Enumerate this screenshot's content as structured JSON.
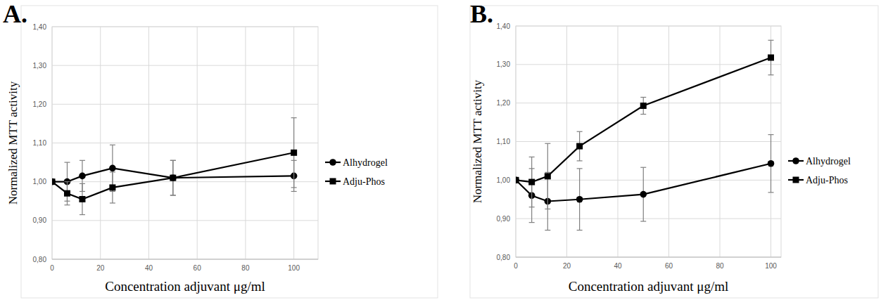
{
  "chart_data": [
    {
      "type": "line",
      "title": "A.",
      "x_label": "Concentration adjuvant μg/ml",
      "y_label": "Normalized MTT activity",
      "x": [
        0,
        6.25,
        12.5,
        25,
        50,
        100
      ],
      "series": [
        {
          "name": "Alhydrogel",
          "color": "#000000",
          "marker": "circle",
          "line_style": "solid",
          "values": [
            1.0,
            1.0,
            1.015,
            1.035,
            1.01,
            1.015
          ],
          "errors": [
            0,
            0.05,
            0.04,
            0.06,
            0.045,
            0.04
          ]
        },
        {
          "name": "Adju-Phos",
          "color": "#000000",
          "marker": "square",
          "line_style": "solid",
          "values": [
            1.0,
            0.97,
            0.955,
            0.985,
            1.01,
            1.075
          ],
          "errors": [
            0,
            0.03,
            0.04,
            0.04,
            0.045,
            0.09
          ]
        }
      ],
      "xlim": [
        0,
        110
      ],
      "xticks": [
        0,
        20,
        40,
        60,
        80,
        100
      ],
      "ylim": [
        0.8,
        1.4
      ],
      "yticks": [
        {
          "value": 0.8,
          "label": "0,80"
        },
        {
          "value": 0.9,
          "label": "0,90"
        },
        {
          "value": 1.0,
          "label": "1,00"
        },
        {
          "value": 1.1,
          "label": "1,10"
        },
        {
          "value": 1.2,
          "label": "1,20"
        },
        {
          "value": 1.3,
          "label": "1,30"
        },
        {
          "value": 1.4,
          "label": "1,40"
        }
      ],
      "grid": true,
      "legend": "right"
    },
    {
      "type": "line",
      "title": "B.",
      "x_label": "Concentration adjuvant μg/ml",
      "y_label": "Normalized MTT activity",
      "x": [
        0,
        6.25,
        12.5,
        25,
        50,
        100
      ],
      "series": [
        {
          "name": "Alhydrogel",
          "color": "#000000",
          "marker": "circle",
          "line_style": "solid",
          "values": [
            1.0,
            0.96,
            0.945,
            0.95,
            0.963,
            1.043
          ],
          "errors": [
            0,
            0.07,
            0.075,
            0.08,
            0.07,
            0.075
          ]
        },
        {
          "name": "Adju-Phos",
          "color": "#000000",
          "marker": "square",
          "line_style": "solid",
          "values": [
            1.0,
            0.995,
            1.01,
            1.088,
            1.193,
            1.318
          ],
          "errors": [
            0,
            0.065,
            0.085,
            0.038,
            0.022,
            0.045
          ]
        }
      ],
      "xlim": [
        0,
        104
      ],
      "xticks": [
        0,
        20,
        40,
        60,
        80,
        100
      ],
      "ylim": [
        0.8,
        1.4
      ],
      "yticks": [
        {
          "value": 0.8,
          "label": "0,80"
        },
        {
          "value": 0.9,
          "label": "0,90"
        },
        {
          "value": 1.0,
          "label": "1,00"
        },
        {
          "value": 1.1,
          "label": "1,10"
        },
        {
          "value": 1.2,
          "label": "1,20"
        },
        {
          "value": 1.3,
          "label": "1,30"
        },
        {
          "value": 1.4,
          "label": "1,40"
        }
      ],
      "grid": true,
      "legend": "right"
    }
  ]
}
